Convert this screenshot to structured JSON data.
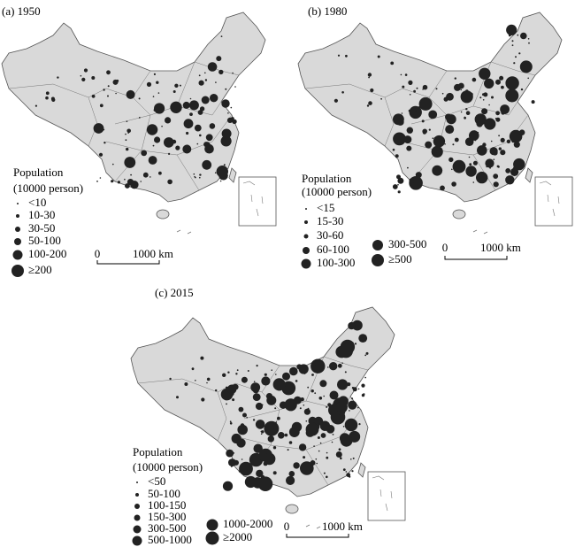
{
  "panels": [
    {
      "title": "(a) 1950",
      "legend": {
        "title": "Population",
        "subtitle": "(10000 person)",
        "items": [
          "<10",
          "10-30",
          "30-50",
          "50-100",
          "100-200",
          "≥200"
        ]
      },
      "scale": {
        "start": "0",
        "end": "1000 km"
      }
    },
    {
      "title": "(b) 1980",
      "legend": {
        "title": "Population",
        "subtitle": "(10000 person)",
        "items": [
          "<15",
          "15-30",
          "30-60",
          "60-100",
          "100-300",
          "300-500",
          "≥500"
        ]
      },
      "scale": {
        "start": "0",
        "end": "1000 km"
      }
    },
    {
      "title": "(c) 2015",
      "legend": {
        "title": "Population",
        "subtitle": "(10000 person)",
        "items": [
          "<50",
          "50-100",
          "100-150",
          "150-300",
          "300-500",
          "500-1000",
          "1000-2000",
          "≥2000"
        ]
      },
      "scale": {
        "start": "0",
        "end": "1000 km"
      }
    }
  ]
}
